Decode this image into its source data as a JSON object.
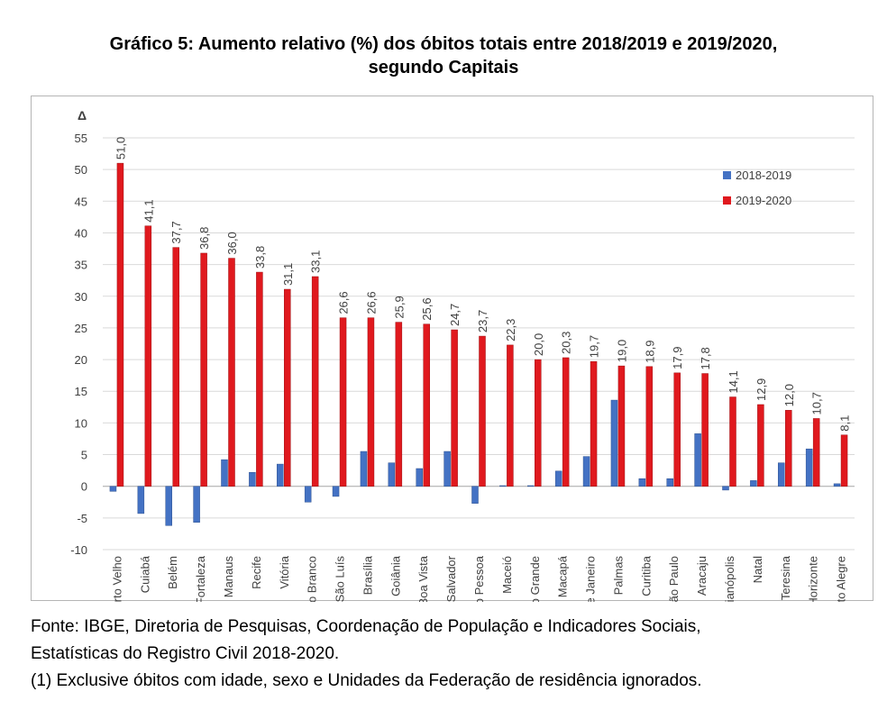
{
  "title": {
    "line1": "Gráfico 5: Aumento relativo (%) dos óbitos totais entre 2018/2019 e 2019/2020,",
    "line2": "segundo Capitais"
  },
  "chart_data": {
    "type": "bar",
    "ylabel": "Δ",
    "ylim": [
      -10,
      55
    ],
    "yticks": [
      55,
      50,
      45,
      40,
      35,
      30,
      25,
      20,
      15,
      10,
      5,
      0,
      -5,
      -10
    ],
    "grid": true,
    "legend_position": "top-right",
    "categories": [
      "Porto Velho",
      "Cuiabá",
      "Belém",
      "Fortaleza",
      "Manaus",
      "Recife",
      "Vitória",
      "Rio Branco",
      "São Luís",
      "Brasília",
      "Goiânia",
      "Boa Vista",
      "Salvador",
      "João Pessoa",
      "Maceió",
      "Campo Grande",
      "Macapá",
      "Rio de Janeiro",
      "Palmas",
      "Curitiba",
      "São Paulo",
      "Aracaju",
      "Florianópolis",
      "Natal",
      "Teresina",
      "Belo Horizonte",
      "Porto Alegre"
    ],
    "series": [
      {
        "name": "2018-2019",
        "color": "#4472c4",
        "values": [
          -0.8,
          -4.3,
          -6.2,
          -5.7,
          4.2,
          2.2,
          3.5,
          -2.5,
          -1.6,
          5.5,
          3.7,
          2.8,
          5.5,
          -2.7,
          0.1,
          0.1,
          2.4,
          4.7,
          13.6,
          1.2,
          1.2,
          8.3,
          -0.6,
          0.9,
          3.7,
          5.9,
          0.4
        ],
        "labels": []
      },
      {
        "name": "2019-2020",
        "color": "#e0191e",
        "values": [
          51.0,
          41.1,
          37.7,
          36.8,
          36.0,
          33.8,
          31.1,
          33.1,
          26.6,
          26.6,
          25.9,
          25.6,
          24.7,
          23.7,
          22.3,
          20.0,
          20.3,
          19.7,
          19.0,
          18.9,
          17.9,
          17.8,
          14.1,
          12.9,
          12.0,
          10.7,
          8.1
        ],
        "labels": [
          "51,0",
          "41,1",
          "37,7",
          "36,8",
          "36,0",
          "33,8",
          "31,1",
          "33,1",
          "26,6",
          "26,6",
          "25,9",
          "25,6",
          "24,7",
          "23,7",
          "22,3",
          "20,0",
          "20,3",
          "19,7",
          "19,0",
          "18,9",
          "17,9",
          "17,8",
          "14,1",
          "12,9",
          "12,0",
          "10,7",
          "8,1"
        ]
      }
    ]
  },
  "notes": {
    "line1": "Fonte: IBGE, Diretoria de Pesquisas, Coordenação de População e Indicadores Sociais,",
    "line2": "Estatísticas do Registro Civil 2018-2020.",
    "line3": "(1) Exclusive óbitos com idade, sexo e Unidades da Federação de residência ignorados."
  }
}
